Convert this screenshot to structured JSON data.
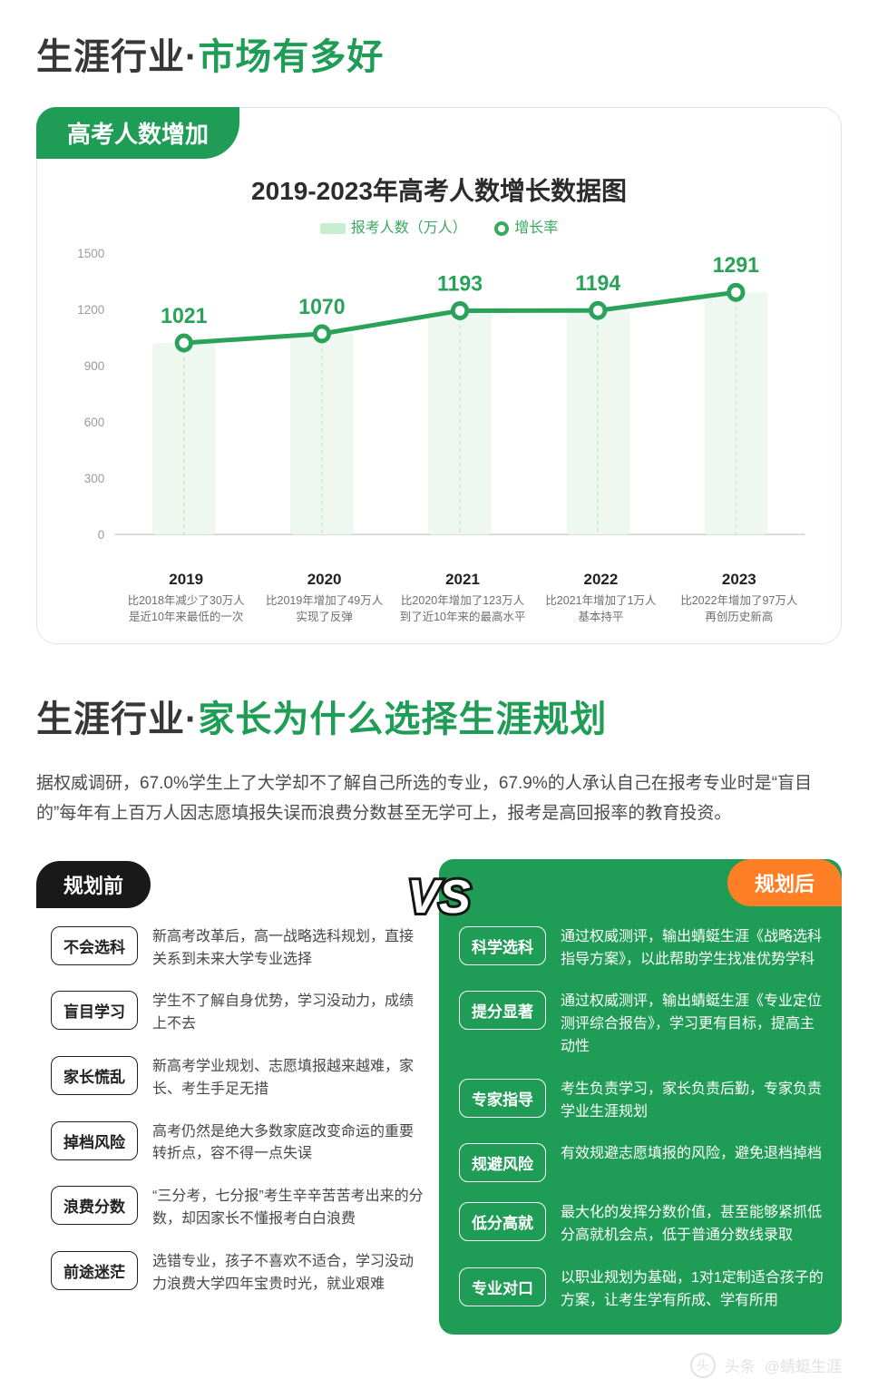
{
  "section1": {
    "title_prefix": "生涯行业·",
    "title_accent": "市场有多好",
    "card_tab": "高考人数增加",
    "chart": {
      "title": "2019-2023年高考人数增长数据图",
      "legend_a": "报考人数（万人）",
      "legend_b": "增长率",
      "y_ticks": [
        "0",
        "300",
        "600",
        "900",
        "1200",
        "1500"
      ],
      "y_max": 1500,
      "series": {
        "categories": [
          "2019",
          "2020",
          "2021",
          "2022",
          "2023"
        ],
        "values": [
          1021,
          1070,
          1193,
          1194,
          1291
        ],
        "labels": [
          "1021",
          "1070",
          "1193",
          "1194",
          "1291"
        ],
        "notes": [
          "比2018年减少了30万人\n是近10年来最低的一次",
          "比2019年增加了49万人\n实现了反弹",
          "比2020年增加了123万人\n到了近10年来的最高水平",
          "比2021年增加了1万人\n基本持平",
          "比2022年增加了97万人\n再创历史新高"
        ]
      },
      "colors": {
        "line": "#2aa25a",
        "marker_stroke": "#2aa25a",
        "marker_fill": "#ffffff",
        "bar_fill": "#eef8f1",
        "axis": "#b9b9b9",
        "ytick_text": "#9a9a9a",
        "value_text": "#2aa25a",
        "dash": "#c7e8cf"
      },
      "line_width": 5,
      "marker_r": 8,
      "marker_stroke_w": 5
    }
  },
  "section2": {
    "title_prefix": "生涯行业·",
    "title_accent": "家长为什么选择生涯规划",
    "intro": "据权威调研，67.0%学生上了大学却不了解自己所选的专业，67.9%的人承认自己在报考专业时是“盲目的”每年有上百万人因志愿填报失误而浪费分数甚至无学可上，报考是高回报率的教育投资。",
    "left_head": "规划前",
    "right_head": "规划后",
    "vs": "VS",
    "left": [
      {
        "tag": "不会选科",
        "desc": "新高考改革后，高一战略选科规划，直接关系到未来大学专业选择"
      },
      {
        "tag": "盲目学习",
        "desc": "学生不了解自身优势，学习没动力，成绩上不去"
      },
      {
        "tag": "家长慌乱",
        "desc": "新高考学业规划、志愿填报越来越难，家长、考生手足无措"
      },
      {
        "tag": "掉档风险",
        "desc": "高考仍然是绝大多数家庭改变命运的重要转折点，容不得一点失误"
      },
      {
        "tag": "浪费分数",
        "desc": "“三分考，七分报”考生辛辛苦苦考出来的分数，却因家长不懂报考白白浪费"
      },
      {
        "tag": "前途迷茫",
        "desc": "选错专业，孩子不喜欢不适合，学习没动力浪费大学四年宝贵时光，就业艰难"
      }
    ],
    "right": [
      {
        "tag": "科学选科",
        "desc": "通过权威测评，输出蜻蜓生涯《战略选科指导方案》，以此帮助学生找准优势学科"
      },
      {
        "tag": "提分显著",
        "desc": "通过权威测评，输出蜻蜓生涯《专业定位测评综合报告》，学习更有目标，提高主动性"
      },
      {
        "tag": "专家指导",
        "desc": "考生负责学习，家长负责后勤，专家负责学业生涯规划"
      },
      {
        "tag": "规避风险",
        "desc": "有效规避志愿填报的风险，避免退档掉档"
      },
      {
        "tag": "低分高就",
        "desc": "最大化的发挥分数价值，甚至能够紧抓低分高就机会点，低于普通分数线录取"
      },
      {
        "tag": "专业对口",
        "desc": "以职业规划为基础，1对1定制适合孩子的方案，让考生学有所成、学有所用"
      }
    ]
  },
  "watermark": {
    "prefix": "头条",
    "handle": "@蜻蜓生涯"
  }
}
